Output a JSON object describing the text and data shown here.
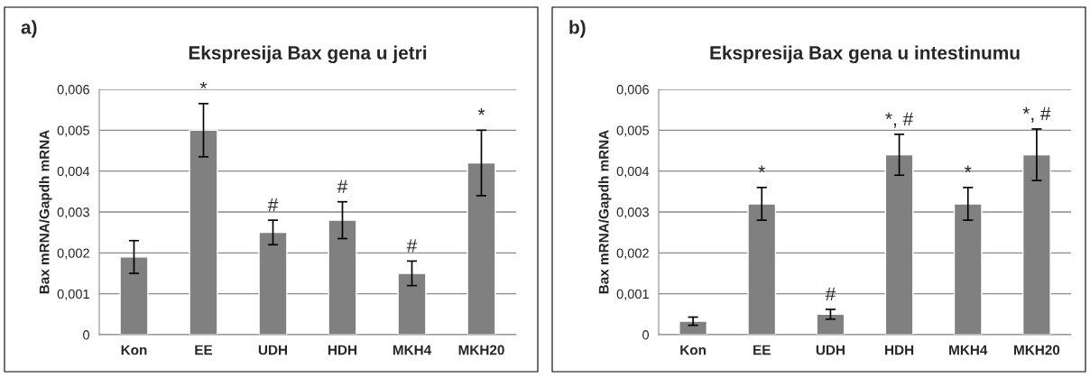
{
  "chart_data": [
    {
      "type": "bar",
      "title": "Ekspresija Bax gena u jetri",
      "ylabel": "Bax mRNA/Gapdh mRNA",
      "categories": [
        "Kon",
        "EE",
        "UDH",
        "HDH",
        "MKH4",
        "MKH20"
      ],
      "values": [
        0.0019,
        0.005,
        0.0025,
        0.0028,
        0.0015,
        0.0042
      ],
      "errors": [
        0.0004,
        0.00065,
        0.0003,
        0.00045,
        0.0003,
        0.0008
      ],
      "color": "#808080",
      "ylim": [
        0,
        0.006
      ],
      "yticks": [
        {
          "value": 0,
          "label": "0"
        },
        {
          "value": 0.001,
          "label": "0,001"
        },
        {
          "value": 0.002,
          "label": "0,002"
        },
        {
          "value": 0.003,
          "label": "0,003"
        },
        {
          "value": 0.004,
          "label": "0,004"
        },
        {
          "value": 0.005,
          "label": "0,005"
        },
        {
          "value": 0.006,
          "label": "0,006"
        }
      ],
      "grid": "y",
      "value_labels": [
        null,
        "*",
        "#",
        "#",
        "#",
        "*"
      ],
      "annotations": [
        "a)"
      ]
    },
    {
      "type": "bar",
      "title": "Ekspresija Bax gena u intestinumu",
      "ylabel": "Bax mRNA/Gapdh mRNA",
      "categories": [
        "Kon",
        "EE",
        "UDH",
        "HDH",
        "MKH4",
        "MKH20"
      ],
      "values": [
        0.00033,
        0.0032,
        0.0005,
        0.0044,
        0.0032,
        0.0044
      ],
      "errors": [
        0.0001,
        0.0004,
        0.00012,
        0.0005,
        0.0004,
        0.00063
      ],
      "color": "#808080",
      "ylim": [
        0,
        0.006
      ],
      "yticks": [
        {
          "value": 0,
          "label": "0"
        },
        {
          "value": 0.001,
          "label": "0,001"
        },
        {
          "value": 0.002,
          "label": "0,002"
        },
        {
          "value": 0.003,
          "label": "0,003"
        },
        {
          "value": 0.004,
          "label": "0,004"
        },
        {
          "value": 0.005,
          "label": "0,005"
        },
        {
          "value": 0.006,
          "label": "0,006"
        }
      ],
      "grid": "y",
      "value_labels": [
        null,
        "*",
        "#",
        "*, #",
        "*",
        "*, #"
      ],
      "annotations": [
        "b)"
      ]
    }
  ]
}
